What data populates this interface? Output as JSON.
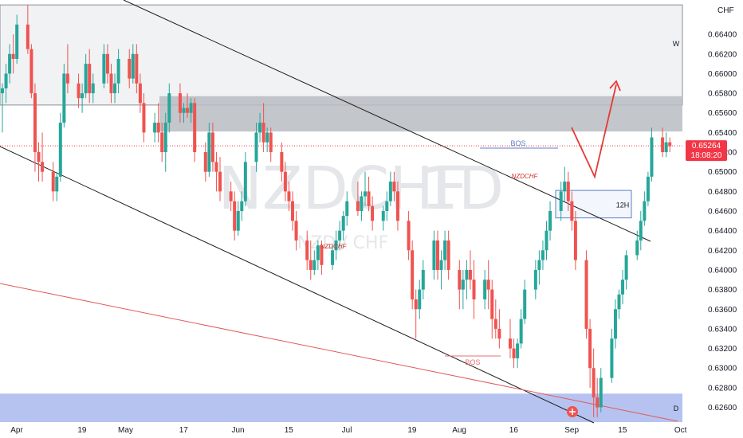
{
  "chart_data": {
    "type": "candlestick",
    "symbol": "NZDCHF",
    "watermark": {
      "symbol": "NZDCHF",
      "interval": "1D",
      "pair": "NZD / CHF"
    },
    "currency": "CHF",
    "ylim": [
      0.6245,
      0.6675
    ],
    "y_ticks": [
      "0.62600",
      "0.62800",
      "0.63000",
      "0.63200",
      "0.63400",
      "0.63600",
      "0.63800",
      "0.64000",
      "0.64200",
      "0.64400",
      "0.64600",
      "0.64800",
      "0.65000",
      "0.65200",
      "0.65400",
      "0.65600",
      "0.65800",
      "0.66000",
      "0.66200",
      "0.66400"
    ],
    "x_ticks": [
      {
        "label": "Apr",
        "day": 0
      },
      {
        "label": "19",
        "day": 18
      },
      {
        "label": "May",
        "day": 30
      },
      {
        "label": "17",
        "day": 46
      },
      {
        "label": "Jun",
        "day": 61
      },
      {
        "label": "15",
        "day": 75
      },
      {
        "label": "Jul",
        "day": 91
      },
      {
        "label": "19",
        "day": 109
      },
      {
        "label": "Aug",
        "day": 122
      },
      {
        "label": "16",
        "day": 137
      },
      {
        "label": "Sep",
        "day": 153
      },
      {
        "label": "15",
        "day": 167
      },
      {
        "label": "Oct",
        "day": 183
      }
    ],
    "last_price": {
      "value": "0.65264",
      "countdown": "18:08:20",
      "price": 0.65264
    },
    "colors": {
      "up": "#26a69a",
      "down": "#ef5350",
      "zone_gray": "#b9bcc2",
      "zone_blue": "#aebcee",
      "price_line": "#f23645"
    },
    "zones": [
      {
        "label": "W",
        "top": 0.667,
        "bottom": 0.6568,
        "style": "outline"
      },
      {
        "label": "",
        "top": 0.6577,
        "bottom": 0.6541,
        "style": "filled-gray"
      },
      {
        "label": "D",
        "top": 0.6274,
        "bottom": 0.6245,
        "style": "filled-blue"
      },
      {
        "label": "12H",
        "top": 0.6481,
        "bottom": 0.6453,
        "style": "outline-blue"
      }
    ],
    "annotations": [
      {
        "text": "BOS",
        "color": "#5b7fc8"
      },
      {
        "text": "NZDCHF",
        "color": "#d32f2f"
      },
      {
        "text": "NZDCHF",
        "color": "#d32f2f"
      },
      {
        "text": "BOS",
        "color": "#e57373"
      }
    ],
    "candles": [
      [
        0.658,
        0.659,
        0.654,
        0.6585
      ],
      [
        0.6585,
        0.661,
        0.657,
        0.66
      ],
      [
        0.66,
        0.663,
        0.659,
        0.662
      ],
      [
        0.662,
        0.664,
        0.66,
        0.6615
      ],
      [
        0.6615,
        0.666,
        0.661,
        0.665
      ],
      [
        0.665,
        0.667,
        0.662,
        0.6625
      ],
      [
        0.6625,
        0.663,
        0.6575,
        0.658
      ],
      [
        0.658,
        0.659,
        0.65,
        0.652
      ],
      [
        0.652,
        0.653,
        0.649,
        0.651
      ],
      [
        0.651,
        0.654,
        0.649,
        0.65
      ],
      [
        0.65,
        0.651,
        0.647,
        0.648
      ],
      [
        0.648,
        0.65,
        0.647,
        0.6495
      ],
      [
        0.6495,
        0.656,
        0.649,
        0.655
      ],
      [
        0.655,
        0.661,
        0.6545,
        0.66
      ],
      [
        0.66,
        0.663,
        0.658,
        0.659
      ],
      [
        0.659,
        0.66,
        0.6565,
        0.6575
      ],
      [
        0.6575,
        0.659,
        0.656,
        0.658
      ],
      [
        0.658,
        0.662,
        0.6575,
        0.661
      ],
      [
        0.661,
        0.6625,
        0.657,
        0.658
      ],
      [
        0.658,
        0.66,
        0.657,
        0.659
      ],
      [
        0.659,
        0.663,
        0.6585,
        0.662
      ],
      [
        0.662,
        0.663,
        0.659,
        0.66
      ],
      [
        0.66,
        0.661,
        0.657,
        0.658
      ],
      [
        0.658,
        0.66,
        0.657,
        0.659
      ],
      [
        0.659,
        0.6625,
        0.658,
        0.6615
      ],
      [
        0.6615,
        0.6625,
        0.6585,
        0.6595
      ],
      [
        0.6595,
        0.663,
        0.659,
        0.662
      ],
      [
        0.662,
        0.663,
        0.658,
        0.659
      ],
      [
        0.659,
        0.66,
        0.656,
        0.657
      ],
      [
        0.657,
        0.658,
        0.653,
        0.654
      ],
      [
        0.654,
        0.656,
        0.653,
        0.655
      ],
      [
        0.655,
        0.657,
        0.653,
        0.654
      ],
      [
        0.654,
        0.655,
        0.651,
        0.652
      ],
      [
        0.652,
        0.656,
        0.65,
        0.655
      ],
      [
        0.655,
        0.659,
        0.654,
        0.658
      ],
      [
        0.658,
        0.659,
        0.655,
        0.656
      ],
      [
        0.656,
        0.657,
        0.655,
        0.6565
      ],
      [
        0.6565,
        0.658,
        0.6555,
        0.656
      ],
      [
        0.656,
        0.6575,
        0.655,
        0.657
      ],
      [
        0.657,
        0.6575,
        0.651,
        0.652
      ],
      [
        0.652,
        0.653,
        0.649,
        0.65
      ],
      [
        0.65,
        0.655,
        0.6495,
        0.654
      ],
      [
        0.654,
        0.655,
        0.65,
        0.651
      ],
      [
        0.651,
        0.652,
        0.648,
        0.65
      ],
      [
        0.65,
        0.6515,
        0.647,
        0.648
      ],
      [
        0.648,
        0.649,
        0.646,
        0.647
      ],
      [
        0.647,
        0.648,
        0.643,
        0.644
      ],
      [
        0.644,
        0.647,
        0.6435,
        0.646
      ],
      [
        0.646,
        0.648,
        0.645,
        0.647
      ],
      [
        0.647,
        0.652,
        0.6465,
        0.651
      ],
      [
        0.651,
        0.655,
        0.65,
        0.654
      ],
      [
        0.654,
        0.656,
        0.653,
        0.655
      ],
      [
        0.655,
        0.657,
        0.652,
        0.653
      ],
      [
        0.653,
        0.6545,
        0.652,
        0.654
      ],
      [
        0.654,
        0.6545,
        0.651,
        0.652
      ],
      [
        0.652,
        0.653,
        0.649,
        0.65
      ],
      [
        0.65,
        0.651,
        0.647,
        0.648
      ],
      [
        0.648,
        0.649,
        0.646,
        0.647
      ],
      [
        0.647,
        0.648,
        0.644,
        0.645
      ],
      [
        0.645,
        0.646,
        0.642,
        0.643
      ],
      [
        0.643,
        0.644,
        0.64,
        0.641
      ],
      [
        0.641,
        0.643,
        0.639,
        0.64
      ],
      [
        0.64,
        0.642,
        0.6395,
        0.641
      ],
      [
        0.641,
        0.643,
        0.64,
        0.6425
      ],
      [
        0.6425,
        0.643,
        0.6395,
        0.6405
      ],
      [
        0.6405,
        0.6425,
        0.64,
        0.642
      ],
      [
        0.642,
        0.644,
        0.641,
        0.643
      ],
      [
        0.643,
        0.645,
        0.642,
        0.644
      ],
      [
        0.644,
        0.646,
        0.643,
        0.6455
      ],
      [
        0.6455,
        0.648,
        0.6445,
        0.647
      ],
      [
        0.647,
        0.649,
        0.6455,
        0.646
      ],
      [
        0.646,
        0.648,
        0.645,
        0.6475
      ],
      [
        0.6475,
        0.65,
        0.6465,
        0.648
      ],
      [
        0.648,
        0.6495,
        0.646,
        0.6465
      ],
      [
        0.6465,
        0.6475,
        0.644,
        0.645
      ],
      [
        0.645,
        0.6465,
        0.644,
        0.646
      ],
      [
        0.646,
        0.648,
        0.645,
        0.647
      ],
      [
        0.647,
        0.65,
        0.6465,
        0.649
      ],
      [
        0.649,
        0.65,
        0.647,
        0.648
      ],
      [
        0.648,
        0.649,
        0.644,
        0.645
      ],
      [
        0.645,
        0.646,
        0.641,
        0.642
      ],
      [
        0.642,
        0.643,
        0.636,
        0.637
      ],
      [
        0.637,
        0.638,
        0.633,
        0.636
      ],
      [
        0.636,
        0.639,
        0.635,
        0.638
      ],
      [
        0.638,
        0.641,
        0.637,
        0.64
      ],
      [
        0.64,
        0.644,
        0.639,
        0.643
      ],
      [
        0.643,
        0.644,
        0.639,
        0.64
      ],
      [
        0.64,
        0.642,
        0.638,
        0.641
      ],
      [
        0.641,
        0.644,
        0.64,
        0.643
      ],
      [
        0.643,
        0.644,
        0.639,
        0.64
      ],
      [
        0.64,
        0.641,
        0.636,
        0.638
      ],
      [
        0.638,
        0.64,
        0.636,
        0.639
      ],
      [
        0.639,
        0.641,
        0.637,
        0.64
      ],
      [
        0.64,
        0.642,
        0.638,
        0.639
      ],
      [
        0.639,
        0.641,
        0.635,
        0.637
      ],
      [
        0.637,
        0.64,
        0.636,
        0.639
      ],
      [
        0.639,
        0.641,
        0.636,
        0.638
      ],
      [
        0.638,
        0.639,
        0.633,
        0.635
      ],
      [
        0.635,
        0.637,
        0.633,
        0.634
      ],
      [
        0.634,
        0.636,
        0.632,
        0.633
      ],
      [
        0.633,
        0.635,
        0.631,
        0.632
      ],
      [
        0.632,
        0.633,
        0.63,
        0.631
      ],
      [
        0.631,
        0.633,
        0.63,
        0.6325
      ],
      [
        0.6325,
        0.636,
        0.632,
        0.635
      ],
      [
        0.635,
        0.639,
        0.6345,
        0.638
      ],
      [
        0.638,
        0.641,
        0.637,
        0.64
      ],
      [
        0.64,
        0.642,
        0.6385,
        0.641
      ],
      [
        0.641,
        0.643,
        0.64,
        0.642
      ],
      [
        0.642,
        0.645,
        0.641,
        0.644
      ],
      [
        0.644,
        0.647,
        0.643,
        0.646
      ],
      [
        0.646,
        0.649,
        0.645,
        0.648
      ],
      [
        0.648,
        0.6505,
        0.647,
        0.649
      ],
      [
        0.649,
        0.65,
        0.646,
        0.647
      ],
      [
        0.647,
        0.648,
        0.644,
        0.645
      ],
      [
        0.645,
        0.646,
        0.64,
        0.641
      ],
      [
        0.641,
        0.642,
        0.633,
        0.634
      ],
      [
        0.634,
        0.635,
        0.628,
        0.63
      ],
      [
        0.63,
        0.632,
        0.625,
        0.627
      ],
      [
        0.627,
        0.629,
        0.625,
        0.626
      ],
      [
        0.626,
        0.63,
        0.6255,
        0.629
      ],
      [
        0.629,
        0.634,
        0.6285,
        0.633
      ],
      [
        0.633,
        0.637,
        0.632,
        0.636
      ],
      [
        0.636,
        0.638,
        0.635,
        0.6375
      ],
      [
        0.6375,
        0.64,
        0.6365,
        0.639
      ],
      [
        0.639,
        0.642,
        0.638,
        0.6415
      ],
      [
        0.6415,
        0.644,
        0.641,
        0.643
      ],
      [
        0.643,
        0.646,
        0.642,
        0.645
      ],
      [
        0.645,
        0.648,
        0.6445,
        0.647
      ],
      [
        0.647,
        0.65,
        0.6465,
        0.6495
      ],
      [
        0.6495,
        0.6545,
        0.649,
        0.6535
      ],
      [
        0.6535,
        0.6545,
        0.6515,
        0.652
      ],
      [
        0.652,
        0.654,
        0.6515,
        0.653
      ],
      [
        0.653,
        0.6535,
        0.652,
        0.6526
      ]
    ]
  }
}
